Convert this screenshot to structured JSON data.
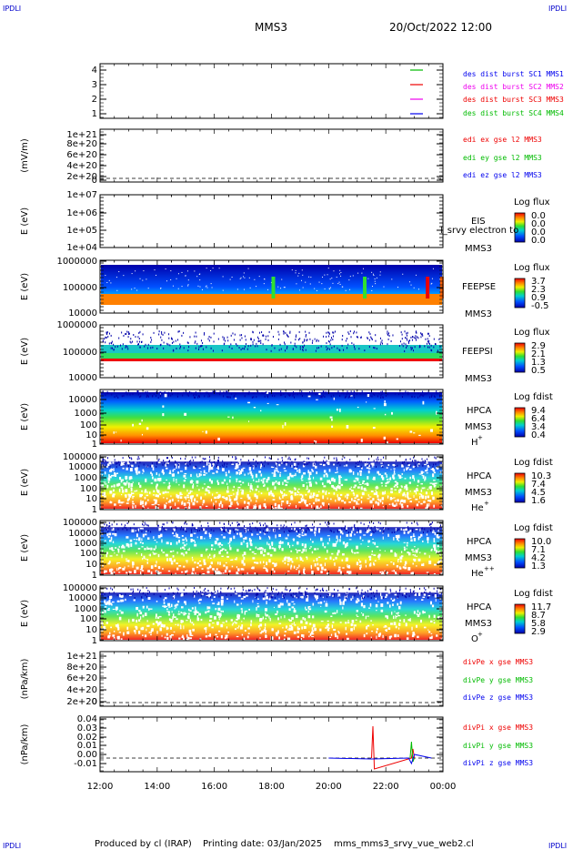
{
  "header": {
    "corner_tl": "IPDLI",
    "corner_tr": "IPDLI",
    "corner_bl": "IPDLI",
    "corner_br": "IPDLI",
    "mission": "MMS3",
    "datetime": "20/Oct/2022 12:00"
  },
  "footer": {
    "produced": "Produced by cl (IRAP)",
    "printing": "Printing date: 03/Jan/2025",
    "script": "mms_mms3_srvy_vue_web2.cl"
  },
  "colors": {
    "blue": "#0000ee",
    "magenta": "#ee00ee",
    "red": "#ee0000",
    "green": "#00bb00",
    "spectro_low": "#0000aa",
    "spectro_high": "#ee0000"
  },
  "chart_data": [
    {
      "type": "line",
      "panel": "des-dist-burst",
      "yticks": [
        "4",
        "3",
        "2",
        "1"
      ],
      "legend": [
        "des dist burst SC1 MMS1",
        "des dist burst SC2 MMS2",
        "des dist burst SC3 MMS3",
        "des dist burst SC4 MMS4"
      ],
      "legend_colors": [
        "blue",
        "magenta",
        "red",
        "green"
      ],
      "series": [
        {
          "name": "des dist burst SC4 MMS4",
          "color": "green",
          "x": [
            23.75,
            24.0
          ],
          "y": [
            4,
            4
          ]
        },
        {
          "name": "des dist burst SC3 MMS3",
          "color": "red",
          "x": [
            23.75,
            24.0
          ],
          "y": [
            3,
            3
          ]
        },
        {
          "name": "des dist burst SC2 MMS2",
          "color": "magenta",
          "x": [
            23.75,
            24.0
          ],
          "y": [
            2,
            2
          ]
        },
        {
          "name": "des dist burst SC1 MMS1",
          "color": "blue",
          "x": [
            23.75,
            24.0
          ],
          "y": [
            1,
            1
          ]
        }
      ],
      "ylim": [
        0.5,
        4.5
      ]
    },
    {
      "type": "line",
      "panel": "edi-e-gse",
      "ylabel": "(mV/m)",
      "yticks": [
        "1e+21",
        "8e+20",
        "6e+20",
        "4e+20",
        "2e+20",
        "0"
      ],
      "legend": [
        "edi ex gse l2 MMS3",
        "edi ey gse l2 MMS3",
        "edi ez gse l2 MMS3"
      ],
      "legend_colors": [
        "red",
        "green",
        "blue"
      ],
      "ylim": [
        0,
        1e+21
      ]
    },
    {
      "type": "heatmap",
      "panel": "EIS",
      "ylabel": "E (eV)",
      "yticks": [
        "1e+07",
        "1e+06",
        "1e+05",
        "1e+04"
      ],
      "title_right": "EIS",
      "subtitle_right": "MMS3",
      "overlay_text": "l_srvy electron to",
      "colorbar_label": "Log flux",
      "colorbar_ticks": [
        "0.0",
        "0.0",
        "0.0",
        "0.0"
      ]
    },
    {
      "type": "heatmap",
      "panel": "FEEPSE",
      "ylabel": "E (eV)",
      "yticks": [
        "1000000",
        "100000",
        "10000"
      ],
      "title_right": "FEEPSE",
      "subtitle_right": "MMS3",
      "colorbar_label": "Log flux",
      "colorbar_ticks": [
        "3.7",
        "2.3",
        "0.9",
        "-0.5"
      ]
    },
    {
      "type": "heatmap",
      "panel": "FEEPSI",
      "ylabel": "E (eV)",
      "yticks": [
        "1000000",
        "100000",
        "10000"
      ],
      "title_right": "FEEPSI",
      "subtitle_right": "MMS3",
      "colorbar_label": "Log flux",
      "colorbar_ticks": [
        "2.9",
        "2.1",
        "1.3",
        "0.5"
      ]
    },
    {
      "type": "heatmap",
      "panel": "HPCA-H+",
      "ylabel": "E (eV)",
      "yticks": [
        "10000",
        "1000",
        "100",
        "10",
        "1"
      ],
      "title_right": "HPCA",
      "subtitle_right": "MMS3",
      "species": "H",
      "species_charge": "+",
      "colorbar_label": "Log fdist",
      "colorbar_ticks": [
        "9.4",
        "6.4",
        "3.4",
        "0.4"
      ]
    },
    {
      "type": "heatmap",
      "panel": "HPCA-He+",
      "ylabel": "E (eV)",
      "yticks": [
        "100000",
        "10000",
        "1000",
        "100",
        "10",
        "1"
      ],
      "title_right": "HPCA",
      "subtitle_right": "MMS3",
      "species": "He",
      "species_charge": "+",
      "colorbar_label": "Log fdist",
      "colorbar_ticks": [
        "10.3",
        "7.4",
        "4.5",
        "1.6"
      ]
    },
    {
      "type": "heatmap",
      "panel": "HPCA-He++",
      "ylabel": "E (eV)",
      "yticks": [
        "100000",
        "10000",
        "1000",
        "100",
        "10",
        "1"
      ],
      "title_right": "HPCA",
      "subtitle_right": "MMS3",
      "species": "He",
      "species_charge": "++",
      "colorbar_label": "Log fdist",
      "colorbar_ticks": [
        "10.0",
        "7.1",
        "4.2",
        "1.3"
      ]
    },
    {
      "type": "heatmap",
      "panel": "HPCA-O+",
      "ylabel": "E (eV)",
      "yticks": [
        "100000",
        "10000",
        "1000",
        "100",
        "10",
        "1"
      ],
      "title_right": "HPCA",
      "subtitle_right": "MMS3",
      "species": "O",
      "species_charge": "+",
      "colorbar_label": "Log fdist",
      "colorbar_ticks": [
        "11.7",
        "8.7",
        "5.8",
        "2.9"
      ]
    },
    {
      "type": "line",
      "panel": "divPe-gse",
      "ylabel": "(nPa/km)",
      "yticks": [
        "1e+21",
        "8e+20",
        "6e+20",
        "4e+20",
        "2e+20",
        "0"
      ],
      "legend": [
        "divPe x gse MMS3",
        "divPe y gse MMS3",
        "divPe z gse MMS3"
      ],
      "legend_colors": [
        "red",
        "green",
        "blue"
      ],
      "ylim": [
        0,
        1e+21
      ]
    },
    {
      "type": "line",
      "panel": "divPi-gse",
      "ylabel": "(nPa/km)",
      "yticks": [
        "0.04",
        "0.03",
        "0.02",
        "0.01",
        "0.00",
        "-0.01"
      ],
      "legend": [
        "divPi x gse MMS3",
        "divPi y gse MMS3",
        "divPi z gse MMS3"
      ],
      "legend_colors": [
        "red",
        "green",
        "blue"
      ],
      "ylim": [
        -0.015,
        0.045
      ],
      "series": [
        {
          "name": "divPi x gse MMS3",
          "color": "red",
          "x": [
            21.5,
            21.55,
            21.6,
            22.9,
            22.95,
            23.0
          ],
          "y": [
            0.0,
            0.035,
            -0.012,
            0.0,
            0.01,
            0.0
          ]
        },
        {
          "name": "divPi y gse MMS3",
          "color": "green",
          "x": [
            22.85,
            22.9,
            22.95,
            23.0
          ],
          "y": [
            0.0,
            0.018,
            -0.004,
            0.0
          ]
        },
        {
          "name": "divPi z gse MMS3",
          "color": "blue",
          "x": [
            20.0,
            21.5,
            22.8,
            22.9,
            23.0,
            23.6
          ],
          "y": [
            0.0,
            -0.001,
            0.0,
            -0.006,
            0.004,
            0.0
          ]
        }
      ]
    }
  ],
  "time_axis": {
    "xticks": [
      "12:00",
      "14:00",
      "16:00",
      "18:00",
      "20:00",
      "22:00",
      "00:00"
    ],
    "x_range_hours": [
      12,
      24
    ]
  }
}
